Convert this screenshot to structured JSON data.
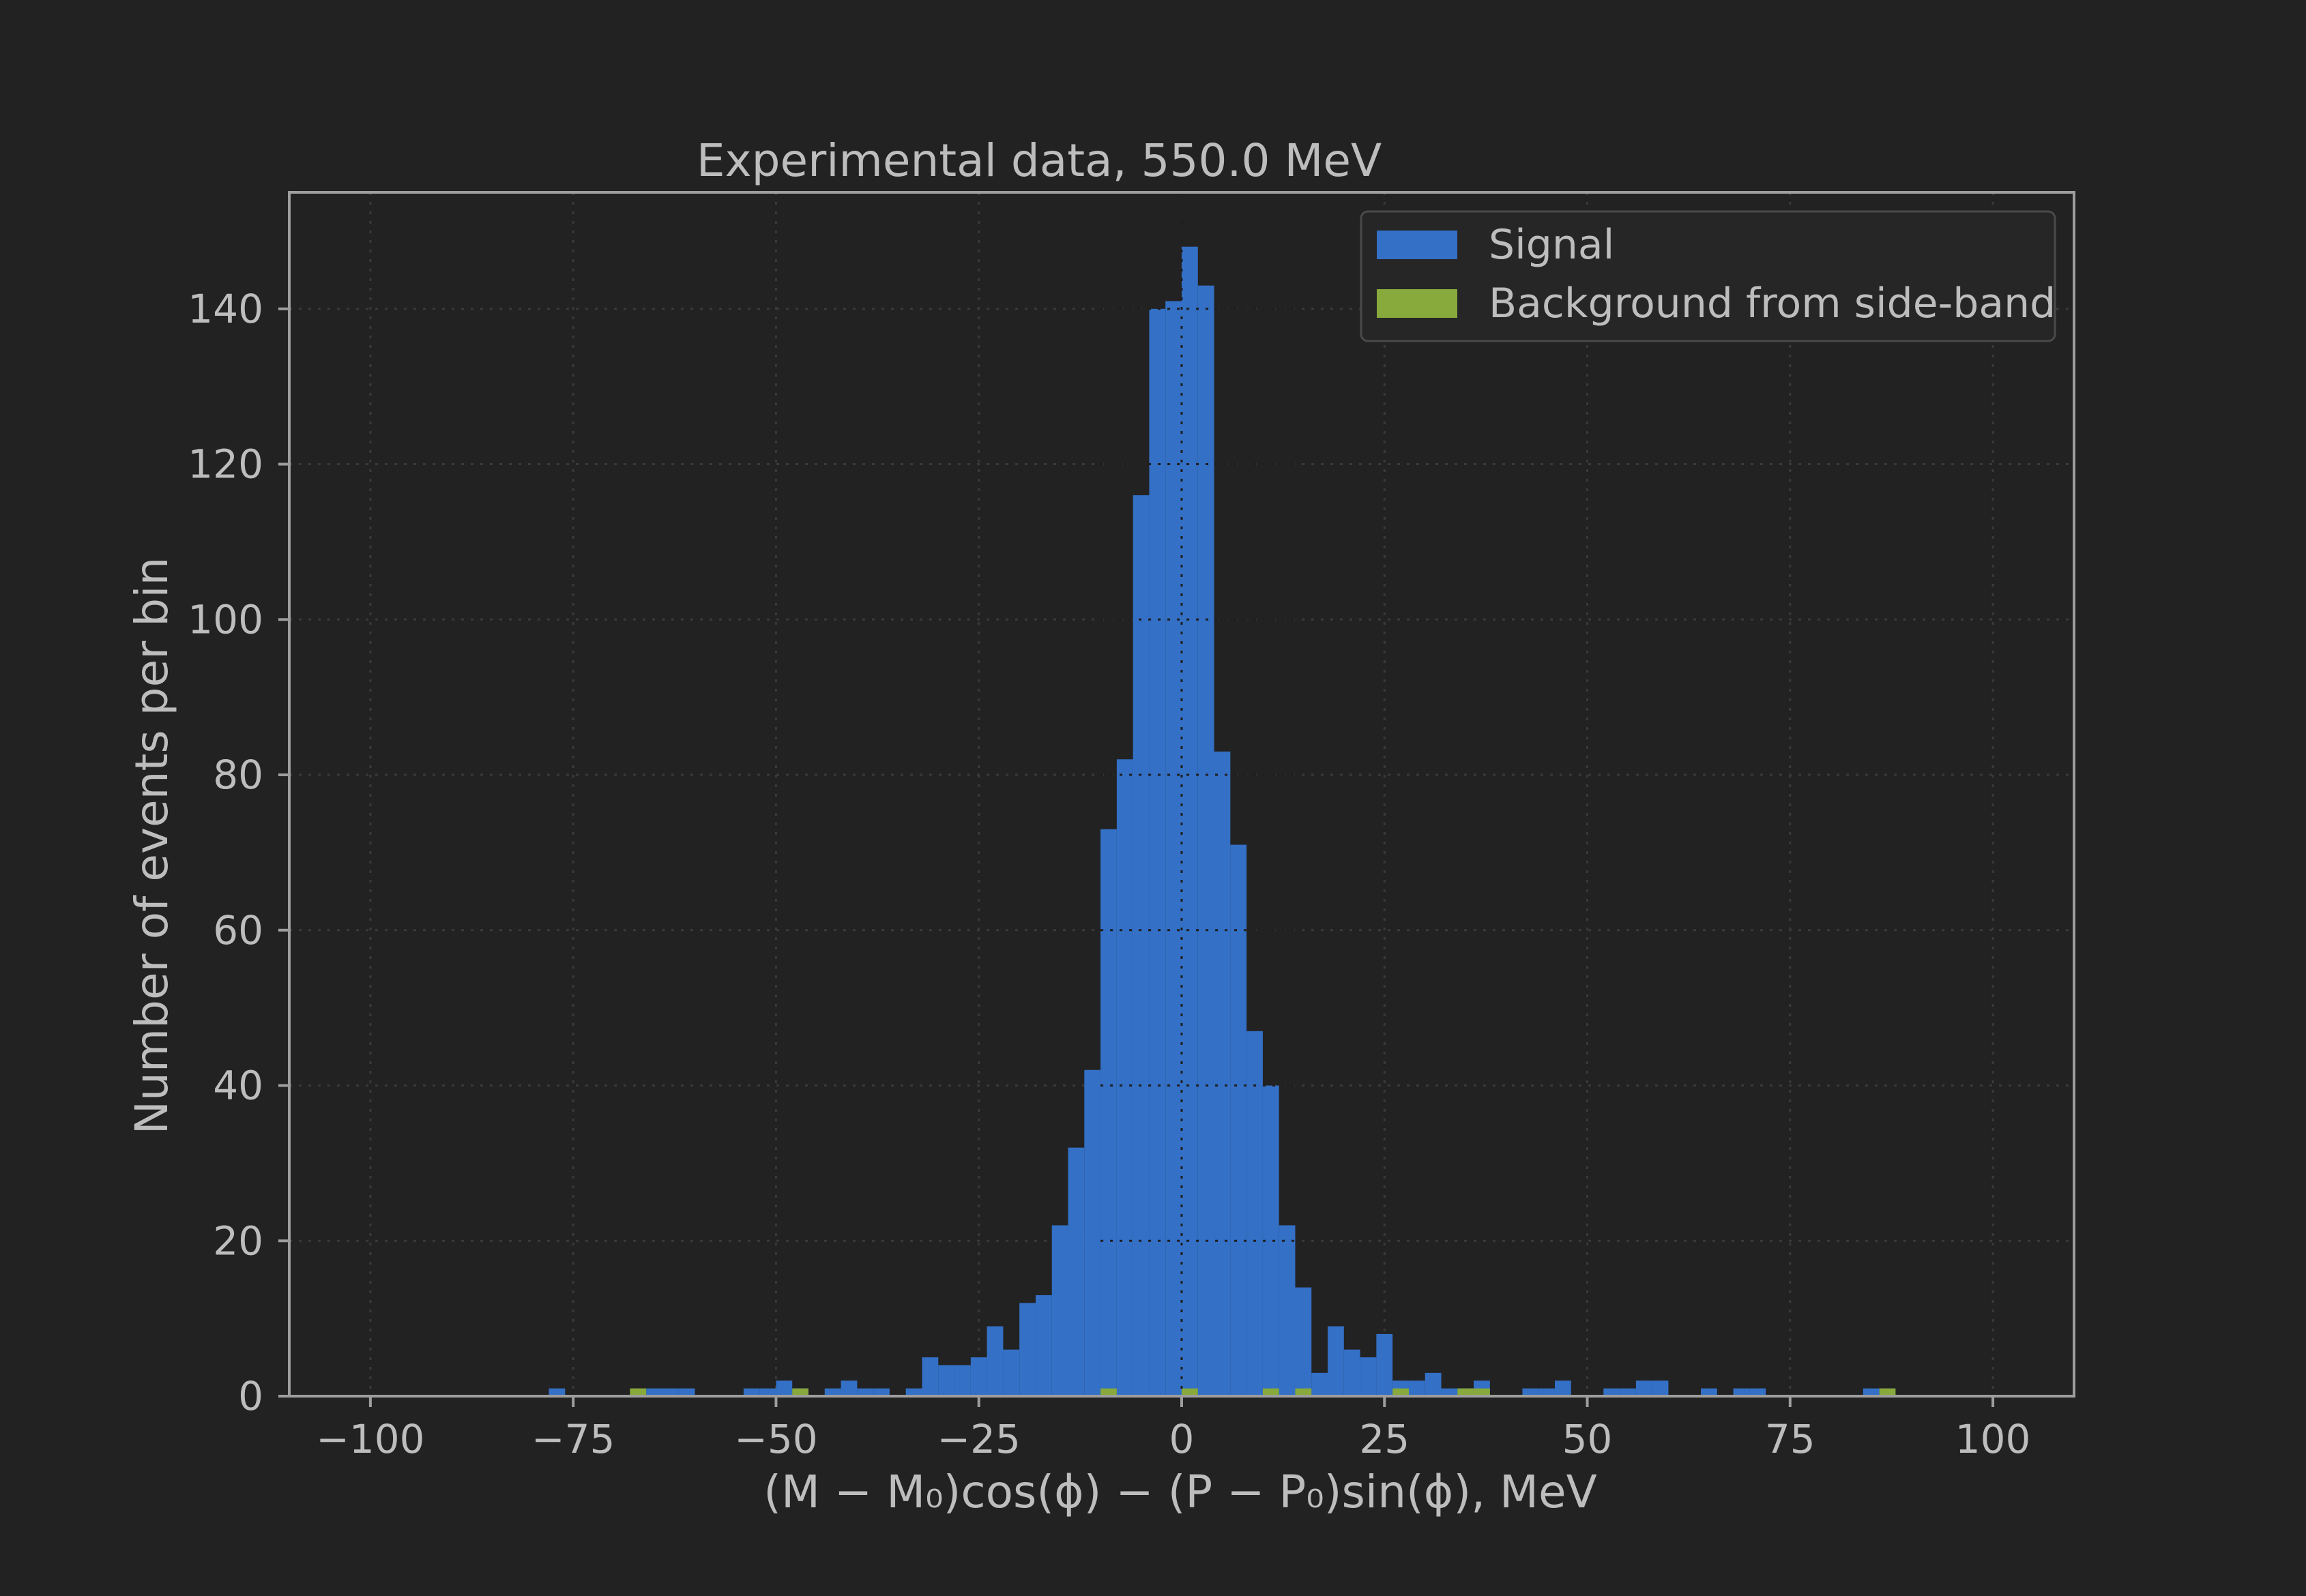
{
  "chart_data": {
    "type": "bar",
    "title": "Experimental data, 550.0 MeV",
    "xlabel": "(M − M₀)cos(ϕ) − (P − P₀)sin(ϕ), MeV",
    "ylabel": "Number of events per bin",
    "xlim": [
      -110,
      110
    ],
    "ylim": [
      0,
      155
    ],
    "xticks": [
      -100,
      -75,
      -50,
      -25,
      0,
      25,
      50,
      75,
      100
    ],
    "xtick_labels": [
      "−100",
      "−75",
      "−50",
      "−25",
      "0",
      "25",
      "50",
      "75",
      "100"
    ],
    "yticks": [
      0,
      20,
      40,
      60,
      80,
      100,
      120,
      140
    ],
    "ytick_labels": [
      "0",
      "20",
      "40",
      "60",
      "80",
      "100",
      "120",
      "140"
    ],
    "grid": true,
    "legend_position": "upper-right",
    "bin_width": 2,
    "series": [
      {
        "name": "Signal",
        "color": "#3470c6",
        "bins": [
          [
            -78,
            1
          ],
          [
            -66,
            1
          ],
          [
            -64,
            1
          ],
          [
            -62,
            1
          ],
          [
            -54,
            1
          ],
          [
            -52,
            1
          ],
          [
            -50,
            2
          ],
          [
            -48,
            1
          ],
          [
            -44,
            1
          ],
          [
            -42,
            2
          ],
          [
            -40,
            1
          ],
          [
            -38,
            1
          ],
          [
            -34,
            1
          ],
          [
            -32,
            5
          ],
          [
            -30,
            4
          ],
          [
            -28,
            4
          ],
          [
            -26,
            5
          ],
          [
            -24,
            9
          ],
          [
            -22,
            6
          ],
          [
            -20,
            12
          ],
          [
            -18,
            13
          ],
          [
            -16,
            22
          ],
          [
            -14,
            32
          ],
          [
            -12,
            42
          ],
          [
            -10,
            73
          ],
          [
            -8,
            82
          ],
          [
            -6,
            116
          ],
          [
            -4,
            140
          ],
          [
            -2,
            141
          ],
          [
            0,
            148
          ],
          [
            2,
            143
          ],
          [
            4,
            83
          ],
          [
            6,
            71
          ],
          [
            8,
            47
          ],
          [
            10,
            40
          ],
          [
            12,
            22
          ],
          [
            14,
            14
          ],
          [
            16,
            3
          ],
          [
            18,
            9
          ],
          [
            20,
            6
          ],
          [
            22,
            5
          ],
          [
            24,
            8
          ],
          [
            26,
            2
          ],
          [
            28,
            2
          ],
          [
            30,
            3
          ],
          [
            32,
            1
          ],
          [
            34,
            1
          ],
          [
            36,
            2
          ],
          [
            42,
            1
          ],
          [
            44,
            1
          ],
          [
            46,
            2
          ],
          [
            52,
            1
          ],
          [
            54,
            1
          ],
          [
            56,
            2
          ],
          [
            58,
            2
          ],
          [
            64,
            1
          ],
          [
            68,
            1
          ],
          [
            70,
            1
          ],
          [
            84,
            1
          ]
        ]
      },
      {
        "name": "Background from side-band",
        "color": "#88a93c",
        "bins": [
          [
            -68,
            1
          ],
          [
            -48,
            1
          ],
          [
            -10,
            1
          ],
          [
            0,
            1
          ],
          [
            10,
            1
          ],
          [
            14,
            1
          ],
          [
            26,
            1
          ],
          [
            34,
            1
          ],
          [
            36,
            1
          ],
          [
            86,
            1
          ]
        ]
      }
    ]
  }
}
